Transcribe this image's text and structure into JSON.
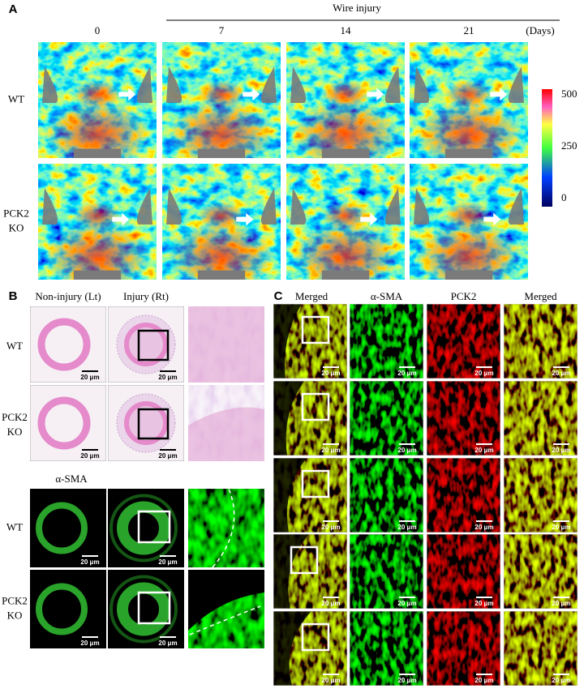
{
  "panel_a": {
    "label": "A",
    "group_label": "Wire injury",
    "days": [
      "0",
      "7",
      "14",
      "21"
    ],
    "days_unit": "(Days)",
    "rows": [
      [
        "WT"
      ],
      [
        "PCK2",
        "KO"
      ]
    ],
    "colorbar": [
      "500",
      "250",
      "0"
    ]
  },
  "panel_b": {
    "label": "B",
    "columns": [
      "Non-injury (Lt)",
      "Injury (Rt)"
    ],
    "he_rows": [
      [
        "WT"
      ],
      [
        "PCK2",
        "KO"
      ]
    ],
    "stain_label": "α-SMA",
    "if_rows": [
      [
        "WT"
      ],
      [
        "PCK2",
        "KO"
      ]
    ]
  },
  "panel_c": {
    "label": "C",
    "columns": [
      "Merged",
      "α-SMA",
      "PCK2",
      "Merged"
    ]
  },
  "scale_bar": "20 μm"
}
